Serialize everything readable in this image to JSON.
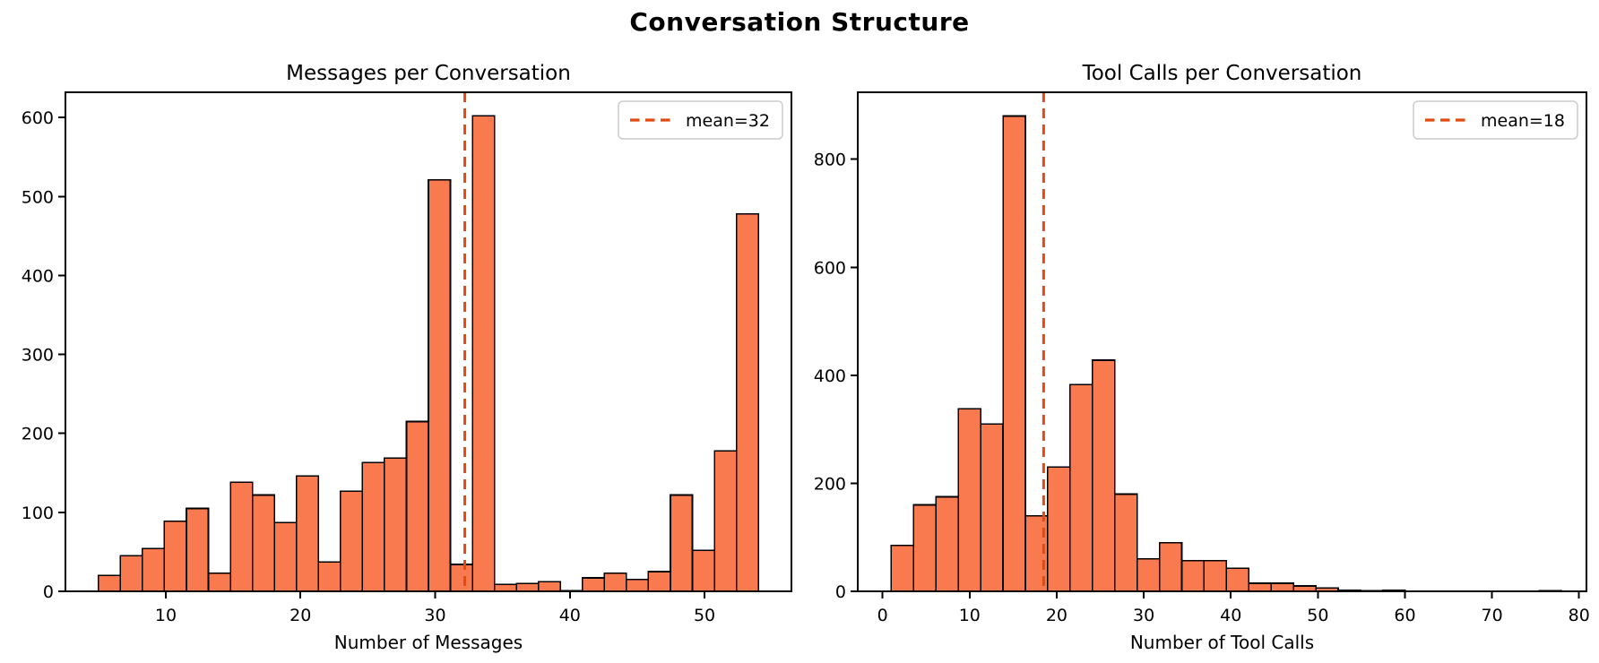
{
  "figure_title": "Conversation Structure",
  "colors": {
    "bar_fill": "#fa7a50",
    "bar_edge": "#000000",
    "mean_line": "#e24a10",
    "legend_border": "#cccccc",
    "axis": "#000000",
    "background": "#ffffff"
  },
  "chart_data": [
    {
      "type": "bar",
      "title": "Messages per Conversation",
      "xlabel": "Number of Messages",
      "ylabel": "",
      "legend": "mean=32",
      "legend_position": "upper right",
      "mean_x": 32.2,
      "bin_start": 5.0,
      "bin_width": 1.6333,
      "counts": [
        20,
        45,
        54,
        89,
        105,
        23,
        138,
        122,
        87,
        146,
        37,
        127,
        163,
        169,
        215,
        521,
        34,
        602,
        9,
        10,
        12,
        1,
        17,
        23,
        15,
        25,
        122,
        52,
        178,
        478
      ],
      "xticks": [
        10,
        20,
        30,
        40,
        50
      ],
      "yticks": [
        0,
        100,
        200,
        300,
        400,
        500,
        600
      ],
      "xlim": [
        2.55,
        56.45
      ],
      "ylim": [
        0,
        632
      ],
      "grid": false
    },
    {
      "type": "bar",
      "title": "Tool Calls per Conversation",
      "xlabel": "Number of Tool Calls",
      "ylabel": "",
      "legend": "mean=18",
      "legend_position": "upper right",
      "mean_x": 18.5,
      "bin_start": 1.0,
      "bin_width": 2.5667,
      "counts": [
        85,
        160,
        175,
        338,
        310,
        880,
        140,
        230,
        383,
        428,
        180,
        60,
        90,
        57,
        57,
        43,
        15,
        15,
        10,
        6,
        2,
        1,
        2,
        0,
        0,
        0,
        0,
        0,
        0,
        1
      ],
      "xticks": [
        0,
        10,
        20,
        30,
        40,
        50,
        60,
        70,
        80
      ],
      "yticks": [
        0,
        200,
        400,
        600,
        800
      ],
      "xlim": [
        -2.85,
        80.85
      ],
      "ylim": [
        0,
        924
      ],
      "grid": false
    }
  ]
}
